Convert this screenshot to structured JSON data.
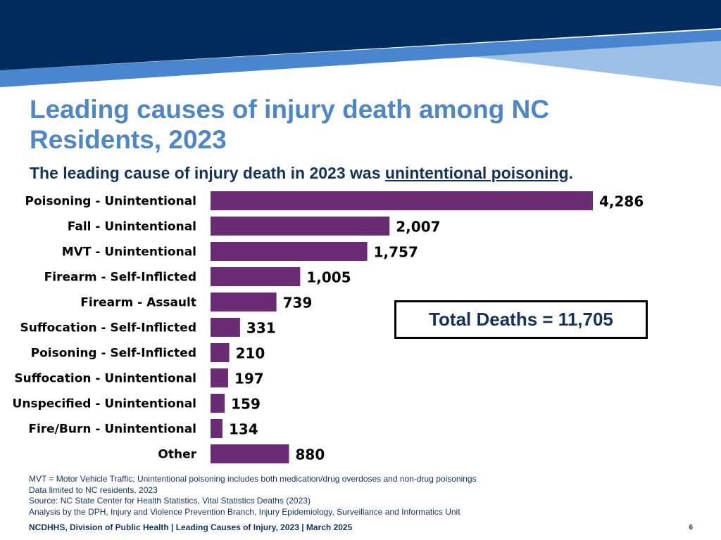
{
  "slide": {
    "title": "Leading causes of injury death among NC Residents, 2023",
    "subtitle_prefix": "The leading cause of injury death in 2023 was ",
    "subtitle_emphasis": "unintentional poisoning",
    "subtitle_suffix": ".",
    "total_label": "Total Deaths = 11,705",
    "notes": [
      "MVT = Motor Vehicle Traffic; Unintentional poisoning includes both medication/drug overdoses and non-drug poisonings",
      "Data limited to NC residents, 2023",
      "Source: NC State Center for Health Statistics, Vital Statistics Deaths (2023)",
      "Analysis by the DPH, Injury and Violence Prevention Branch, Injury Epidemiology, Surveillance and Informatics Unit"
    ],
    "footer": "NCDHHS, Division of Public Health | Leading Causes of Injury, 2023 | March 2025",
    "page_number": "6"
  },
  "colors": {
    "bar": "#6a2d74",
    "title": "#4f86c6",
    "text_dark": "#13335e",
    "banner_navy": "#002b5c",
    "banner_blue": "#4a86cf",
    "banner_light": "#9dc0e6"
  },
  "chart_data": {
    "type": "bar",
    "orientation": "horizontal",
    "categories": [
      "Poisoning - Unintentional",
      "Fall - Unintentional",
      "MVT - Unintentional",
      "Firearm - Self-Inflicted",
      "Firearm - Assault",
      "Suffocation - Self-Inflicted",
      "Poisoning - Self-Inflicted",
      "Suffocation - Unintentional",
      "Unspecified - Unintentional",
      "Fire/Burn - Unintentional",
      "Other"
    ],
    "values": [
      4286,
      2007,
      1757,
      1005,
      739,
      331,
      210,
      197,
      159,
      134,
      880
    ],
    "value_labels": [
      "4,286",
      "2,007",
      "1,757",
      "1,005",
      "739",
      "331",
      "210",
      "197",
      "159",
      "134",
      "880"
    ],
    "xlim": [
      0,
      4286
    ],
    "grid": false,
    "legend": "none"
  }
}
